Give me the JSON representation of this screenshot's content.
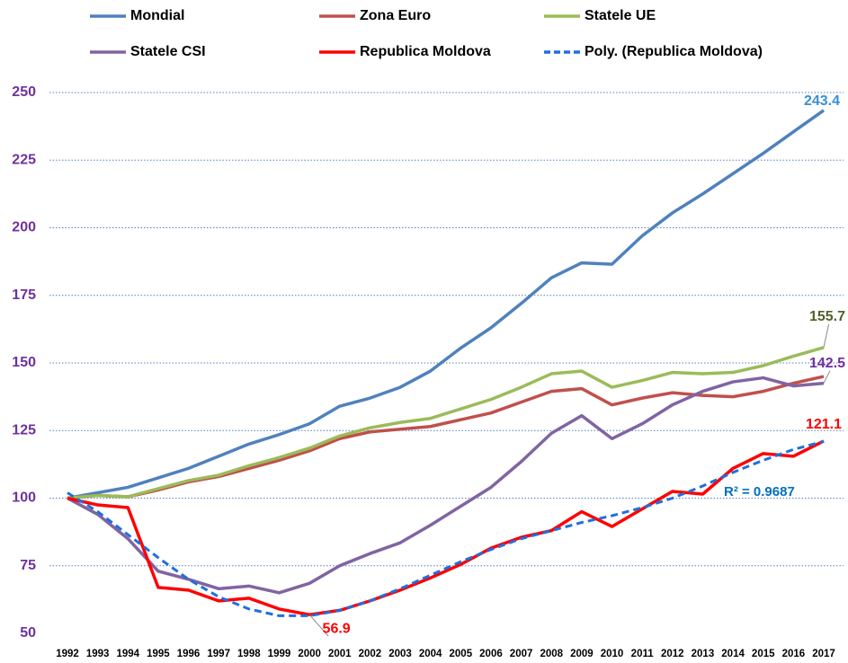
{
  "chart_data": {
    "type": "line",
    "categories": [
      "1992",
      "1993",
      "1994",
      "1995",
      "1996",
      "1997",
      "1998",
      "1999",
      "2000",
      "2001",
      "2002",
      "2003",
      "2004",
      "2005",
      "2006",
      "2007",
      "2008",
      "2009",
      "2010",
      "2011",
      "2012",
      "2013",
      "2014",
      "2015",
      "2016",
      "2017"
    ],
    "series": [
      {
        "name": "Mondial",
        "color": "#4f81bd",
        "label_color": "#3a8fd6",
        "values": [
          100,
          102,
          104,
          107.5,
          111,
          115.5,
          120,
          123.5,
          127.5,
          134,
          137,
          141,
          147,
          155.5,
          163,
          172,
          181.5,
          187,
          186.5,
          197,
          205.5,
          212.5,
          220,
          227.5,
          235.5,
          243.4
        ]
      },
      {
        "name": "Zona Euro",
        "color": "#c0504d",
        "values": [
          100,
          101,
          100.5,
          103,
          106,
          108,
          111,
          114,
          117.5,
          122,
          124.5,
          125.5,
          126.5,
          129,
          131.5,
          135.5,
          139.5,
          140.5,
          134.5,
          137,
          139,
          138,
          137.5,
          139.5,
          142.5,
          145
        ]
      },
      {
        "name": "Statele UE",
        "color": "#9bbb59",
        "label_color": "#4f6228",
        "values": [
          100,
          101,
          100.5,
          103.5,
          106.5,
          108.5,
          112,
          115,
          118.5,
          123,
          126,
          128,
          129.5,
          133,
          136.5,
          141,
          146,
          147,
          141,
          143.5,
          146.5,
          146,
          146.5,
          149,
          152.5,
          155.7
        ]
      },
      {
        "name": "Statele CSI",
        "color": "#8064a2",
        "label_color": "#7030a0",
        "values": [
          100,
          94,
          85,
          73,
          70,
          66.5,
          67.5,
          65,
          68.5,
          75,
          79.5,
          83.5,
          90,
          97,
          104,
          113.5,
          124,
          130.5,
          122,
          127.5,
          134.5,
          139.5,
          143,
          144.5,
          141.5,
          142.5
        ]
      },
      {
        "name": "Republica Moldova",
        "color": "#ff0000",
        "label_color": "#ff0000",
        "values": [
          100,
          97.5,
          96.5,
          67,
          66,
          62,
          63,
          59,
          56.9,
          58.5,
          62,
          66,
          70.5,
          75.5,
          81.5,
          85.5,
          88,
          95,
          89.5,
          96,
          102.5,
          101.5,
          111,
          116.5,
          115.5,
          121.1
        ]
      },
      {
        "name": "Poly. (Republica Moldova)",
        "color": "#1f6fe0",
        "dashed": true,
        "values": [
          102,
          95,
          86.5,
          78,
          70,
          63.5,
          59,
          56.5,
          56.5,
          58.5,
          62,
          66.5,
          71.5,
          76.5,
          81,
          85,
          88,
          91,
          93.5,
          96.5,
          100,
          104.5,
          109.5,
          114,
          118,
          121
        ]
      }
    ],
    "annotation": "R² = 0.9687",
    "annotation_color": "#0070c0",
    "ylim": [
      50,
      250
    ],
    "yticks": [
      50,
      75,
      100,
      125,
      150,
      175,
      200,
      225,
      250
    ],
    "ytick_color": "#7030a0",
    "grid": true
  }
}
